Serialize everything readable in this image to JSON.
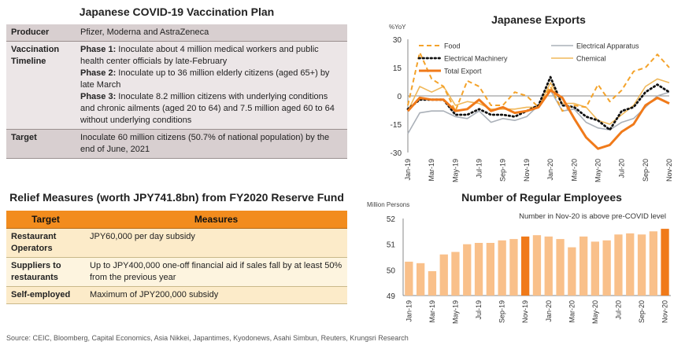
{
  "vaccination": {
    "title": "Japanese COVID-19 Vaccination Plan",
    "rows": [
      {
        "key": "Producer",
        "value": "Pfizer, Moderna and AstraZeneca"
      },
      {
        "key": "Vaccination Timeline",
        "phases": [
          {
            "label": "Phase 1:",
            "text": " Inoculate about 4 million medical workers and public health center officials by late-February"
          },
          {
            "label": "Phase 2:",
            "text": " Inoculate up to 36 million elderly citizens (aged 65+) by late March"
          },
          {
            "label": "Phase 3:",
            "text": " Inoculate 8.2 million citizens with underlying conditions and chronic ailments (aged 20 to 64) and 7.5 million aged 60 to 64 without underlying conditions"
          }
        ]
      },
      {
        "key": "Target",
        "value": "Inoculate 60 million citizens (50.7% of national population) by the end of June, 2021"
      }
    ]
  },
  "relief": {
    "title": "Relief Measures (worth JPY741.8bn) from FY2020 Reserve Fund",
    "headers": [
      "Target",
      "Measures"
    ],
    "rows": [
      {
        "target": "Restaurant Operators",
        "measure": "JPY60,000 per day subsidy"
      },
      {
        "target": "Suppliers to restaurants",
        "measure": "Up to JPY400,000 one-off financial aid if sales fall by at least 50% from the previous year"
      },
      {
        "target": "Self-employed",
        "measure": "Maximum of JPY200,000 subsidy"
      }
    ]
  },
  "source": "Source: CEIC, Bloomberg, Capital Economics, Asia Nikkei, Japantimes, Kyodonews, Asahi Simbun, Reuters, Krungsri Research",
  "chart_data": [
    {
      "type": "line",
      "title": "Japanese Exports",
      "ylabel": "%YoY",
      "ylim": [
        -30,
        30
      ],
      "yticks": [
        30,
        15,
        0,
        -15,
        -30
      ],
      "x": [
        "Jan-19",
        "Feb-19",
        "Mar-19",
        "Apr-19",
        "May-19",
        "Jun-19",
        "Jul-19",
        "Aug-19",
        "Sep-19",
        "Oct-19",
        "Nov-19",
        "Dec-19",
        "Jan-20",
        "Feb-20",
        "Mar-20",
        "Apr-20",
        "May-20",
        "Jun-20",
        "Jul-20",
        "Aug-20",
        "Sep-20",
        "Oct-20",
        "Nov-20"
      ],
      "xtick_labels": [
        "Jan-19",
        "Mar-19",
        "May-19",
        "Jul-19",
        "Sep-19",
        "Nov-19",
        "Jan-20",
        "Mar-20",
        "May-20",
        "Jul-20",
        "Sep-20",
        "Nov-20"
      ],
      "legend_position": "top",
      "grid": false,
      "series": [
        {
          "name": "Food",
          "color": "#f4a32b",
          "dash": "dashed",
          "values": [
            -5,
            23,
            9,
            5,
            -8,
            8,
            5,
            -5,
            -5,
            2,
            0,
            -6,
            5,
            -8,
            -5,
            -6,
            6,
            -3,
            3,
            13,
            15,
            22,
            15
          ]
        },
        {
          "name": "Electrical Apparatus",
          "color": "#aab0b8",
          "dash": "solid",
          "values": [
            -20,
            -9,
            -8,
            -8,
            -11,
            -12,
            -8,
            -14,
            -12,
            -13,
            -11,
            -5,
            3,
            -8,
            -7,
            -14,
            -17,
            -18,
            -14,
            -12,
            -6,
            0,
            2
          ]
        },
        {
          "name": "Electrical Machinery",
          "color": "#111111",
          "dash": "dotted",
          "values": [
            -7,
            -2,
            -2,
            -2,
            -10,
            -10,
            -7,
            -10,
            -10,
            -11,
            -8,
            -5,
            10,
            -5,
            -6,
            -11,
            -13,
            -18,
            -8,
            -6,
            2,
            6,
            2
          ]
        },
        {
          "name": "Chemical",
          "color": "#f0b85a",
          "dash": "solid",
          "values": [
            -8,
            5,
            2,
            5,
            -5,
            -3,
            -4,
            -7,
            -7,
            -7,
            -6,
            -6,
            7,
            -4,
            -4,
            -6,
            -13,
            -15,
            -10,
            -5,
            5,
            9,
            7
          ]
        },
        {
          "name": "Total Export",
          "color": "#f07a1a",
          "dash": "solid-thick",
          "values": [
            -8,
            -1,
            -2,
            -2,
            -8,
            -7,
            -2,
            -8,
            -6,
            -9,
            -8,
            -6,
            3,
            -1,
            -12,
            -22,
            -28,
            -26,
            -19,
            -15,
            -5,
            -1,
            -4
          ]
        }
      ]
    },
    {
      "type": "bar",
      "title": "Number of Regular Employees",
      "ylabel": "Million Persons",
      "ylim": [
        49,
        52
      ],
      "yticks": [
        52,
        51,
        50,
        49
      ],
      "annotation": "Number in Nov-20 is above pre-COVID level",
      "categories": [
        "Jan-19",
        "Feb-19",
        "Mar-19",
        "Apr-19",
        "May-19",
        "Jun-19",
        "Jul-19",
        "Aug-19",
        "Sep-19",
        "Oct-19",
        "Nov-19",
        "Dec-19",
        "Jan-20",
        "Feb-20",
        "Mar-20",
        "Apr-20",
        "May-20",
        "Jun-20",
        "Jul-20",
        "Aug-20",
        "Sep-20",
        "Oct-20",
        "Nov-20"
      ],
      "xtick_labels": [
        "Jan-19",
        "Mar-19",
        "May-19",
        "Jul-19",
        "Sep-19",
        "Nov-19",
        "Jan-20",
        "Mar-20",
        "May-20",
        "Jul-20",
        "Sep-20",
        "Nov-20"
      ],
      "values": [
        50.32,
        50.26,
        49.95,
        50.6,
        50.7,
        51.0,
        51.05,
        51.05,
        51.15,
        51.2,
        51.3,
        51.35,
        51.3,
        51.2,
        50.88,
        51.3,
        51.1,
        51.15,
        51.38,
        51.42,
        51.38,
        51.5,
        51.6
      ],
      "highlight": [
        "Nov-19",
        "Nov-20"
      ],
      "bar_color": "#f9c08a",
      "highlight_color": "#f07a1a"
    }
  ]
}
